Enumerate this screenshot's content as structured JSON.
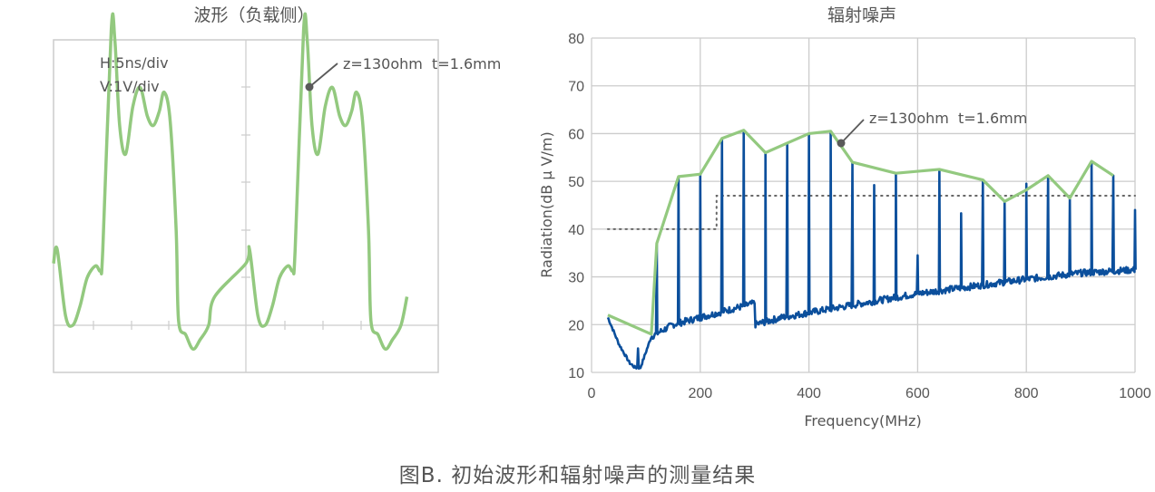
{
  "figure_caption": "图B.  初始波形和辐射噪声的测量结果",
  "colors": {
    "envelope": "#93c97f",
    "spectrum": "#0b4f9c",
    "grid": "#cccccc",
    "text": "#555555",
    "marker": "#5a5a5a"
  },
  "chart_data": [
    {
      "type": "line",
      "title": "波形（负载侧）",
      "annotations": [
        "H:5ns/div",
        "V:1V/div",
        "z=130ohm  t=1.6mm"
      ],
      "description": "Oscilloscope waveform, two repeated pulse periods",
      "xlabel": "",
      "ylabel": "",
      "x_scale": "5 ns/div",
      "y_scale": "1 V/div",
      "series": [
        {
          "name": "z=130ohm t=1.6mm",
          "points_div": [
            [
              0,
              1.3
            ],
            [
              0.15,
              1.6
            ],
            [
              0.5,
              0.2
            ],
            [
              0.8,
              0
            ],
            [
              1.1,
              0.4
            ],
            [
              1.4,
              1.0
            ],
            [
              1.75,
              1.25
            ],
            [
              1.95,
              1.15
            ],
            [
              2.05,
              1.6
            ],
            [
              2.4,
              6.2
            ],
            [
              2.55,
              6.0
            ],
            [
              2.75,
              4.2
            ],
            [
              3.0,
              3.6
            ],
            [
              3.3,
              4.6
            ],
            [
              3.6,
              5.0
            ],
            [
              3.9,
              4.4
            ],
            [
              4.15,
              4.2
            ],
            [
              4.4,
              4.5
            ],
            [
              4.6,
              4.9
            ],
            [
              4.85,
              4.3
            ],
            [
              5.1,
              2.0
            ],
            [
              5.2,
              0.1
            ],
            [
              5.5,
              -0.2
            ],
            [
              5.8,
              -0.5
            ],
            [
              6.1,
              -0.3
            ],
            [
              6.45,
              0.0
            ],
            [
              6.7,
              0.6
            ]
          ]
        }
      ],
      "grid": false
    },
    {
      "type": "line",
      "title": "辐射噪声",
      "xlabel": "Frequency(MHz)",
      "ylabel": "Radiation(dB μ V/m)",
      "xlim": [
        0,
        1000
      ],
      "ylim": [
        10,
        80
      ],
      "x_ticks": [
        0,
        200,
        400,
        600,
        800,
        1000
      ],
      "y_ticks": [
        10,
        20,
        30,
        40,
        50,
        60,
        70,
        80
      ],
      "grid": true,
      "annotations": [
        "z=130ohm  t=1.6mm"
      ],
      "series": [
        {
          "name": "envelope (z=130ohm t=1.6mm)",
          "color": "#93c97f",
          "x": [
            30,
            110,
            120,
            160,
            200,
            240,
            280,
            320,
            360,
            400,
            440,
            480,
            560,
            640,
            720,
            760,
            800,
            840,
            880,
            920,
            960
          ],
          "values": [
            22,
            18,
            37,
            51,
            51.5,
            59,
            60.7,
            56,
            58,
            60,
            60.5,
            54,
            51.7,
            52.5,
            50.3,
            45.8,
            48.2,
            51.2,
            46.5,
            54.2,
            51.2
          ]
        },
        {
          "name": "spectrum peaks",
          "color": "#0b4f9c",
          "x": [
            120,
            160,
            200,
            240,
            280,
            320,
            360,
            400,
            440,
            480,
            520,
            560,
            600,
            640,
            680,
            720,
            760,
            800,
            840,
            880,
            920,
            960,
            1000
          ],
          "values": [
            37,
            51,
            51.5,
            59,
            60.7,
            56,
            58,
            60,
            60.5,
            54,
            49.2,
            51.7,
            34.5,
            52.5,
            43.3,
            50.3,
            45.8,
            49.5,
            51.2,
            46.5,
            54.2,
            51.2,
            44
          ]
        },
        {
          "name": "noise floor",
          "color": "#0b4f9c",
          "x": [
            30,
            50,
            70,
            80,
            90,
            110,
            150,
            200,
            250,
            300,
            300.5,
            350,
            400,
            500,
            600,
            700,
            800,
            900,
            1000
          ],
          "values": [
            21.5,
            16,
            12,
            11,
            11,
            17.5,
            20,
            21.5,
            23,
            24.5,
            20,
            21.5,
            22.5,
            24.5,
            26.5,
            28,
            29.5,
            30.8,
            31.5
          ]
        },
        {
          "name": "limit line",
          "style": "dotted",
          "color": "#666666",
          "x": [
            30,
            230,
            230,
            1000
          ],
          "values": [
            40,
            40,
            47,
            47
          ]
        }
      ]
    }
  ]
}
